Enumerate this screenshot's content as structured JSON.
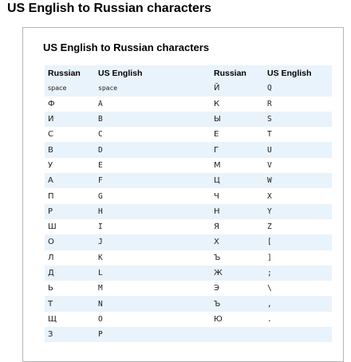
{
  "page_title": "US English to Russian characters",
  "card_title": "US English to Russian characters",
  "headers": {
    "russian_1": "Russian",
    "us_english_1": "US English",
    "russian_2": "Russian",
    "us_english_2": "US English"
  },
  "rows": [
    {
      "ru1": "space",
      "en1": "space",
      "ru2": "Й",
      "en2": "Q"
    },
    {
      "ru1": "Ф",
      "en1": "A",
      "ru2": "К",
      "en2": "R"
    },
    {
      "ru1": "И",
      "en1": "B",
      "ru2": "Ы",
      "en2": "S"
    },
    {
      "ru1": "С",
      "en1": "C",
      "ru2": "Е",
      "en2": "T"
    },
    {
      "ru1": "В",
      "en1": "D",
      "ru2": "Г",
      "en2": "U"
    },
    {
      "ru1": "У",
      "en1": "E",
      "ru2": "М",
      "en2": "V"
    },
    {
      "ru1": "А",
      "en1": "F",
      "ru2": "Ц",
      "en2": "W"
    },
    {
      "ru1": "П",
      "en1": "G",
      "ru2": "Ч",
      "en2": "X"
    },
    {
      "ru1": "Р",
      "en1": "H",
      "ru2": "Н",
      "en2": "Y"
    },
    {
      "ru1": "Ш",
      "en1": "I",
      "ru2": "Я",
      "en2": "Z"
    },
    {
      "ru1": "О",
      "en1": "J",
      "ru2": "Х",
      "en2": "["
    },
    {
      "ru1": "Л",
      "en1": "K",
      "ru2": "Ъ",
      "en2": "]"
    },
    {
      "ru1": "Д",
      "en1": "L",
      "ru2": "Ж",
      "en2": ";"
    },
    {
      "ru1": "Ь",
      "en1": "M",
      "ru2": "Э",
      "en2": "\\"
    },
    {
      "ru1": "Т",
      "en1": "N",
      "ru2": "Ъ",
      "en2": ","
    },
    {
      "ru1": "Щ",
      "en1": "O",
      "ru2": "Ю",
      "en2": "."
    },
    {
      "ru1": "З",
      "en1": "P",
      "ru2": "",
      "en2": ""
    }
  ]
}
